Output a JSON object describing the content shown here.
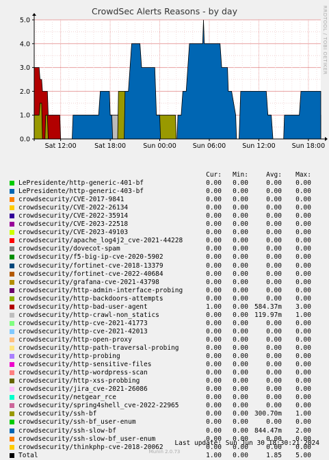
{
  "title": "CrowdSec Alerts Reasons - by day",
  "side_label": "RRDTOOL / TOBI OETIKER",
  "chart_data": {
    "type": "area",
    "title": "CrowdSec Alerts Reasons - by day",
    "ylim": [
      0,
      5
    ],
    "yticks": [
      "0.0",
      "1.0",
      "2.0",
      "3.0",
      "4.0",
      "5.0"
    ],
    "xticks": [
      {
        "label": "Sat 12:00",
        "t": 2
      },
      {
        "label": "Sat 18:00",
        "t": 8
      },
      {
        "label": "Sun 00:00",
        "t": 14
      },
      {
        "label": "Sun 06:00",
        "t": 20
      },
      {
        "label": "Sun 12:00",
        "t": 26
      },
      {
        "label": "Sun 18:00",
        "t": 32
      }
    ],
    "xrange": [
      -1.2,
      33.5
    ],
    "grid": true,
    "stack_order": [
      "bad-user-agent",
      "http-crawl-non_statics",
      "ssh-bf",
      "ssh-slow-bf"
    ],
    "series": [
      {
        "name": "crowdsecurity/http-bad-user-agent",
        "key": "bad-user-agent",
        "color": "#b20000",
        "points": [
          [
            -1.2,
            3
          ],
          [
            -0.6,
            3
          ],
          [
            -0.5,
            2.5
          ],
          [
            -0.3,
            2.5
          ],
          [
            -0.2,
            2
          ],
          [
            0.4,
            2
          ],
          [
            0.6,
            1
          ],
          [
            1.8,
            1
          ],
          [
            2,
            0
          ],
          [
            30,
            0
          ],
          [
            30.1,
            1
          ],
          [
            32.7,
            1
          ],
          [
            32.8,
            1
          ],
          [
            33.5,
            1
          ],
          [
            18.6,
            0
          ]
        ],
        "segments": [
          [
            [
              -1.2,
              3
            ],
            [
              -0.6,
              3
            ],
            [
              -0.5,
              2.5
            ],
            [
              -0.3,
              2.5
            ],
            [
              -0.2,
              2
            ],
            [
              0.4,
              2
            ],
            [
              0.5,
              1
            ],
            [
              1.9,
              1
            ],
            [
              2,
              0
            ]
          ],
          [
            [
              17.7,
              0
            ],
            [
              17.8,
              1
            ],
            [
              18.3,
              1
            ],
            [
              18.4,
              1.5
            ],
            [
              18.6,
              1.5
            ],
            [
              18.7,
              2
            ],
            [
              21.2,
              2
            ],
            [
              21.3,
              1.5
            ],
            [
              21.5,
              1.5
            ],
            [
              21.6,
              1
            ],
            [
              22.2,
              1
            ],
            [
              22.3,
              0
            ]
          ],
          [
            [
              23.9,
              0
            ],
            [
              24,
              1
            ],
            [
              27.4,
              1
            ],
            [
              27.5,
              0
            ]
          ],
          [
            [
              31.4,
              0
            ],
            [
              31.5,
              1
            ],
            [
              33.5,
              1
            ]
          ]
        ]
      },
      {
        "name": "crowdsecurity/http-crawl-non_statics",
        "key": "http-crawl-non_statics",
        "color": "#bbbbbb",
        "segments": [
          [
            [
              7.2,
              0
            ],
            [
              7.3,
              1
            ],
            [
              9.7,
              1
            ],
            [
              9.8,
              0
            ]
          ]
        ]
      },
      {
        "name": "crowdsecurity/ssh-bf",
        "key": "ssh-bf",
        "color": "#999900",
        "segments": [
          [
            [
              -1.2,
              1
            ],
            [
              -0.6,
              1
            ],
            [
              -0.5,
              1.5
            ],
            [
              -0.3,
              1.5
            ],
            [
              -0.2,
              0
            ],
            [
              0.1,
              0
            ],
            [
              0.2,
              1
            ],
            [
              0.4,
              1
            ],
            [
              0.5,
              0
            ]
          ],
          [
            [
              8.9,
              0
            ],
            [
              9,
              2
            ],
            [
              11.2,
              2
            ],
            [
              11.3,
              1
            ],
            [
              12.4,
              1
            ],
            [
              12.5,
              0
            ]
          ],
          [
            [
              13.4,
              0
            ],
            [
              13.5,
              1
            ],
            [
              15.9,
              1
            ],
            [
              16,
              0
            ]
          ],
          [
            [
              18.6,
              0
            ],
            [
              18.7,
              1
            ],
            [
              19.3,
              1
            ],
            [
              19.4,
              2
            ],
            [
              19.6,
              2
            ],
            [
              19.7,
              1
            ],
            [
              19.9,
              1
            ],
            [
              20,
              0
            ]
          ]
        ]
      },
      {
        "name": "crowdsecurity/ssh-slow-bf",
        "key": "ssh-slow-bf",
        "color": "#0066b3",
        "segments": [
          [
            [
              3.4,
              0
            ],
            [
              3.5,
              1
            ],
            [
              6.6,
              1
            ],
            [
              6.8,
              2
            ],
            [
              7.9,
              2
            ],
            [
              8,
              1
            ],
            [
              8.2,
              1
            ],
            [
              8.3,
              0
            ]
          ],
          [
            [
              9.7,
              0
            ],
            [
              9.8,
              2
            ],
            [
              10.2,
              2
            ],
            [
              10.4,
              3
            ],
            [
              10.6,
              4
            ],
            [
              11.6,
              4
            ],
            [
              11.8,
              3
            ],
            [
              13.4,
              3
            ],
            [
              13.6,
              1
            ],
            [
              14,
              1
            ],
            [
              14.1,
              0
            ]
          ],
          [
            [
              16.1,
              0
            ],
            [
              16.2,
              1
            ],
            [
              16.6,
              1
            ],
            [
              16.8,
              2
            ],
            [
              17.2,
              2
            ],
            [
              17.4,
              3
            ],
            [
              17.6,
              4
            ],
            [
              19.2,
              4
            ],
            [
              19.3,
              5
            ],
            [
              19.4,
              4
            ],
            [
              21.3,
              4
            ],
            [
              21.5,
              3
            ],
            [
              22.2,
              3
            ],
            [
              22.3,
              2
            ],
            [
              22.7,
              2
            ],
            [
              23.2,
              1
            ],
            [
              23.3,
              0
            ]
          ],
          [
            [
              23.6,
              0
            ],
            [
              23.8,
              2
            ],
            [
              26.9,
              2
            ],
            [
              27.1,
              1
            ],
            [
              27.5,
              1
            ],
            [
              27.7,
              0
            ]
          ],
          [
            [
              29,
              0
            ],
            [
              29.1,
              1
            ],
            [
              30.9,
              1
            ],
            [
              31.1,
              2
            ],
            [
              33.5,
              2
            ]
          ]
        ]
      }
    ]
  },
  "legend": {
    "headers": [
      "Cur:",
      "Min:",
      "Avg:",
      "Max:"
    ],
    "rows": [
      {
        "name": "LePresidente/http-generic-401-bf",
        "color": "#00cc00",
        "cur": "0.00",
        "min": "0.00",
        "avg": "0.00",
        "max": "0.00"
      },
      {
        "name": "LePresidente/http-generic-403-bf",
        "color": "#0066b3",
        "cur": "0.00",
        "min": "0.00",
        "avg": "0.00",
        "max": "0.00"
      },
      {
        "name": "crowdsecurity/CVE-2017-9841",
        "color": "#ff8000",
        "cur": "0.00",
        "min": "0.00",
        "avg": "0.00",
        "max": "0.00"
      },
      {
        "name": "crowdsecurity/CVE-2022-26134",
        "color": "#ffcc00",
        "cur": "0.00",
        "min": "0.00",
        "avg": "0.00",
        "max": "0.00"
      },
      {
        "name": "crowdsecurity/CVE-2022-35914",
        "color": "#330099",
        "cur": "0.00",
        "min": "0.00",
        "avg": "0.00",
        "max": "0.00"
      },
      {
        "name": "crowdsecurity/CVE-2023-22518",
        "color": "#990099",
        "cur": "0.00",
        "min": "0.00",
        "avg": "0.00",
        "max": "0.00"
      },
      {
        "name": "crowdsecurity/CVE-2023-49103",
        "color": "#ccff00",
        "cur": "0.00",
        "min": "0.00",
        "avg": "0.00",
        "max": "0.00"
      },
      {
        "name": "crowdsecurity/apache_log4j2_cve-2021-44228",
        "color": "#ff0000",
        "cur": "0.00",
        "min": "0.00",
        "avg": "0.00",
        "max": "0.00"
      },
      {
        "name": "crowdsecurity/dovecot-spam",
        "color": "#808080",
        "cur": "0.00",
        "min": "0.00",
        "avg": "0.00",
        "max": "0.00"
      },
      {
        "name": "crowdsecurity/f5-big-ip-cve-2020-5902",
        "color": "#008f00",
        "cur": "0.00",
        "min": "0.00",
        "avg": "0.00",
        "max": "0.00"
      },
      {
        "name": "crowdsecurity/fortinet-cve-2018-13379",
        "color": "#00487d",
        "cur": "0.00",
        "min": "0.00",
        "avg": "0.00",
        "max": "0.00"
      },
      {
        "name": "crowdsecurity/fortinet-cve-2022-40684",
        "color": "#b35a00",
        "cur": "0.00",
        "min": "0.00",
        "avg": "0.00",
        "max": "0.00"
      },
      {
        "name": "crowdsecurity/grafana-cve-2021-43798",
        "color": "#b38f00",
        "cur": "0.00",
        "min": "0.00",
        "avg": "0.00",
        "max": "0.00"
      },
      {
        "name": "crowdsecurity/http-admin-interface-probing",
        "color": "#6b006b",
        "cur": "0.00",
        "min": "0.00",
        "avg": "0.00",
        "max": "0.00"
      },
      {
        "name": "crowdsecurity/http-backdoors-attempts",
        "color": "#8fb300",
        "cur": "0.00",
        "min": "0.00",
        "avg": "0.00",
        "max": "0.00"
      },
      {
        "name": "crowdsecurity/http-bad-user-agent",
        "color": "#b30000",
        "cur": "1.00",
        "min": "0.00",
        "avg": "584.37m",
        "max": "3.00"
      },
      {
        "name": "crowdsecurity/http-crawl-non_statics",
        "color": "#bebebe",
        "cur": "0.00",
        "min": "0.00",
        "avg": "119.97m",
        "max": "1.00"
      },
      {
        "name": "crowdsecurity/http-cve-2021-41773",
        "color": "#80ff80",
        "cur": "0.00",
        "min": "0.00",
        "avg": "0.00",
        "max": "0.00"
      },
      {
        "name": "crowdsecurity/http-cve-2021-42013",
        "color": "#80c9ff",
        "cur": "0.00",
        "min": "0.00",
        "avg": "0.00",
        "max": "0.00"
      },
      {
        "name": "crowdsecurity/http-open-proxy",
        "color": "#ffc080",
        "cur": "0.00",
        "min": "0.00",
        "avg": "0.00",
        "max": "0.00"
      },
      {
        "name": "crowdsecurity/http-path-traversal-probing",
        "color": "#ffe680",
        "cur": "0.00",
        "min": "0.00",
        "avg": "0.00",
        "max": "0.00"
      },
      {
        "name": "crowdsecurity/http-probing",
        "color": "#aa80ff",
        "cur": "0.00",
        "min": "0.00",
        "avg": "0.00",
        "max": "0.00"
      },
      {
        "name": "crowdsecurity/http-sensitive-files",
        "color": "#ee00cc",
        "cur": "0.00",
        "min": "0.00",
        "avg": "0.00",
        "max": "0.00"
      },
      {
        "name": "crowdsecurity/http-wordpress-scan",
        "color": "#ff8080",
        "cur": "0.00",
        "min": "0.00",
        "avg": "0.00",
        "max": "0.00"
      },
      {
        "name": "crowdsecurity/http-xss-probbing",
        "color": "#666600",
        "cur": "0.00",
        "min": "0.00",
        "avg": "0.00",
        "max": "0.00"
      },
      {
        "name": "crowdsecurity/jira_cve-2021-26086",
        "color": "#ffbfff",
        "cur": "0.00",
        "min": "0.00",
        "avg": "0.00",
        "max": "0.00"
      },
      {
        "name": "crowdsecurity/netgear_rce",
        "color": "#00ffcc",
        "cur": "0.00",
        "min": "0.00",
        "avg": "0.00",
        "max": "0.00"
      },
      {
        "name": "crowdsecurity/spring4shell_cve-2022-22965",
        "color": "#cc6699",
        "cur": "0.00",
        "min": "0.00",
        "avg": "0.00",
        "max": "0.00"
      },
      {
        "name": "crowdsecurity/ssh-bf",
        "color": "#999900",
        "cur": "0.00",
        "min": "0.00",
        "avg": "300.70m",
        "max": "1.00"
      },
      {
        "name": "crowdsecurity/ssh-bf_user-enum",
        "color": "#00cc00",
        "cur": "0.00",
        "min": "0.00",
        "avg": "0.00",
        "max": "0.00"
      },
      {
        "name": "crowdsecurity/ssh-slow-bf",
        "color": "#0066b3",
        "cur": "0.00",
        "min": "0.00",
        "avg": "844.47m",
        "max": "2.00"
      },
      {
        "name": "crowdsecurity/ssh-slow-bf_user-enum",
        "color": "#ff8000",
        "cur": "0.00",
        "min": "0.00",
        "avg": "0.00",
        "max": "0.00"
      },
      {
        "name": "crowdsecurity/thinkphp-cve-2018-20062",
        "color": "#ffcc00",
        "cur": "0.00",
        "min": "0.00",
        "avg": "0.00",
        "max": "0.00"
      },
      {
        "name": "Total",
        "color": "#000000",
        "cur": "1.00",
        "min": "0.00",
        "avg": "1.85",
        "max": "5.00"
      }
    ]
  },
  "last_update": "Last update: Sun Jun 30 18:30:21 2024",
  "munin_version": "Munin 2.0.73"
}
